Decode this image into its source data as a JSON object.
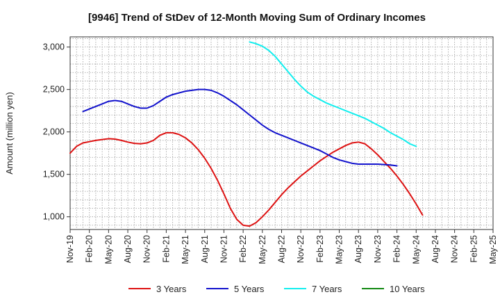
{
  "chart_data": {
    "type": "line",
    "title": "[9946]  Trend of StDev of 12-Month Moving Sum of Ordinary Incomes",
    "xlabel": "",
    "ylabel": "Amount (million yen)",
    "ylim": [
      850,
      3120
    ],
    "y_ticks": [
      1000,
      1500,
      2000,
      2500,
      3000
    ],
    "y_tick_labels": [
      "1,000",
      "1,500",
      "2,000",
      "2,500",
      "3,000"
    ],
    "x_start": "Nov-19",
    "x_count": 67,
    "x_tick_labels": [
      "Nov-19",
      "Feb-20",
      "May-20",
      "Aug-20",
      "Nov-20",
      "Feb-21",
      "May-21",
      "Aug-21",
      "Nov-21",
      "Feb-22",
      "May-22",
      "Aug-22",
      "Nov-22",
      "Feb-23",
      "May-23",
      "Aug-23",
      "Nov-23",
      "Feb-24",
      "May-24",
      "Aug-24",
      "Nov-24",
      "Feb-25",
      "May-25"
    ],
    "grid": true,
    "legend_position": "bottom",
    "series": [
      {
        "name": "3 Years",
        "color": "#dd1111",
        "start_index": 0,
        "values": [
          1750,
          1830,
          1870,
          1885,
          1900,
          1910,
          1920,
          1915,
          1900,
          1880,
          1865,
          1860,
          1870,
          1900,
          1960,
          1990,
          1990,
          1970,
          1930,
          1870,
          1790,
          1690,
          1570,
          1430,
          1270,
          1100,
          970,
          900,
          890,
          930,
          1000,
          1080,
          1170,
          1260,
          1340,
          1410,
          1480,
          1540,
          1600,
          1660,
          1710,
          1760,
          1800,
          1840,
          1870,
          1880,
          1860,
          1800,
          1730,
          1650,
          1570,
          1480,
          1380,
          1270,
          1150,
          1020
        ]
      },
      {
        "name": "5 Years",
        "color": "#1111cc",
        "start_index": 2,
        "values": [
          2240,
          2270,
          2300,
          2330,
          2360,
          2370,
          2360,
          2330,
          2300,
          2280,
          2280,
          2310,
          2360,
          2410,
          2440,
          2460,
          2480,
          2490,
          2500,
          2500,
          2490,
          2460,
          2420,
          2370,
          2320,
          2260,
          2200,
          2140,
          2080,
          2030,
          1990,
          1960,
          1930,
          1900,
          1870,
          1840,
          1810,
          1780,
          1740,
          1700,
          1670,
          1650,
          1630,
          1620,
          1620,
          1620,
          1620,
          1615,
          1610,
          1600
        ]
      },
      {
        "name": "7 Years",
        "color": "#11eeee",
        "start_index": 28,
        "values": [
          3060,
          3040,
          3010,
          2960,
          2890,
          2800,
          2710,
          2620,
          2540,
          2470,
          2420,
          2380,
          2340,
          2310,
          2280,
          2250,
          2220,
          2190,
          2160,
          2120,
          2080,
          2040,
          1990,
          1950,
          1910,
          1860,
          1830
        ]
      },
      {
        "name": "10 Years",
        "color": "#118811",
        "start_index": 0,
        "values": []
      }
    ]
  }
}
